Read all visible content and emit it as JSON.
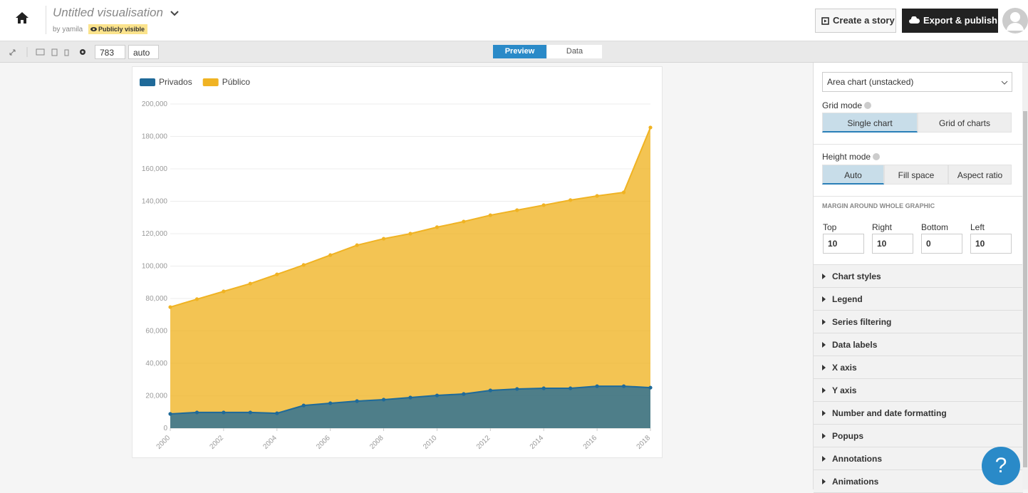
{
  "header": {
    "title": "Untitled visualisation",
    "byline": "by yamila",
    "visibility": "Publicly visible",
    "buttons": [
      "Create a story",
      "Export & publish"
    ]
  },
  "toolbar": {
    "width": 783,
    "height": "auto",
    "tabs": [
      "Preview",
      "Data"
    ]
  },
  "chart_data": {
    "type": "area",
    "x": [
      2000,
      2001,
      2002,
      2003,
      2004,
      2005,
      2006,
      2007,
      2008,
      2009,
      2010,
      2011,
      2012,
      2013,
      2014,
      2015,
      2016,
      2017,
      2018
    ],
    "series": [
      {
        "name": "Privados",
        "color": "#1f6a99",
        "values": [
          8800,
          9700,
          9700,
          9700,
          9200,
          14000,
          15400,
          16700,
          17600,
          18900,
          20200,
          21100,
          23300,
          24200,
          24600,
          24600,
          25900,
          25900,
          25000
        ]
      },
      {
        "name": "Público",
        "color": "#f0b323",
        "values": [
          74700,
          79600,
          84400,
          89200,
          94900,
          100700,
          106800,
          112900,
          116900,
          120000,
          124000,
          127500,
          131400,
          134500,
          137600,
          140700,
          143300,
          145500,
          185500
        ]
      }
    ],
    "xlim": [
      2000,
      2018
    ],
    "xticks": [
      2000,
      2002,
      2004,
      2006,
      2008,
      2010,
      2012,
      2014,
      2016,
      2018
    ],
    "ylim": [
      0,
      200000
    ],
    "yticks": [
      0,
      {
        "value": 20000,
        "label": "20,000"
      },
      {
        "value": 40000,
        "label": "40,000"
      },
      {
        "value": 60000,
        "label": "60,000"
      },
      {
        "value": 80000,
        "label": "80,000"
      },
      {
        "value": 100000,
        "label": "100,000"
      },
      {
        "value": 120000,
        "label": "120,000"
      },
      {
        "value": 140000,
        "label": "140,000"
      },
      {
        "value": 160000,
        "label": "160,000"
      },
      {
        "value": 180000,
        "label": "180,000"
      },
      {
        "value": 200000,
        "label": "200,000"
      }
    ],
    "grid": true,
    "legend": "top-left"
  },
  "panel": {
    "chart_type": "Area chart (unstacked)",
    "grid_mode": {
      "label": "Grid mode",
      "options": [
        "Single chart",
        "Grid of charts"
      ]
    },
    "height_mode": {
      "label": "Height mode",
      "options": [
        "Auto",
        "Fill space",
        "Aspect ratio"
      ]
    },
    "margin": {
      "title": "MARGIN AROUND WHOLE GRAPHIC",
      "fields": [
        {
          "label": "Top",
          "value": 10
        },
        {
          "label": "Right",
          "value": 10
        },
        {
          "label": "Bottom",
          "value": 0
        },
        {
          "label": "Left",
          "value": 10
        }
      ]
    },
    "sections": [
      "Chart styles",
      "Legend",
      "Series filtering",
      "Data labels",
      "X axis",
      "Y axis",
      "Number and date formatting",
      "Popups",
      "Annotations",
      "Animations"
    ],
    "help": "?"
  }
}
